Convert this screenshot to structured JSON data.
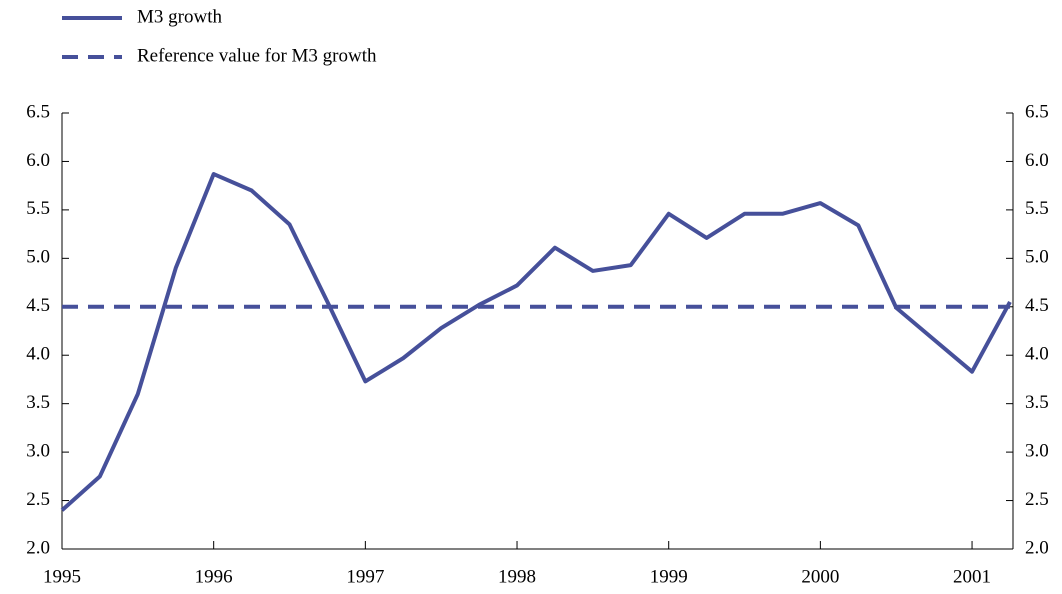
{
  "chart_data": {
    "type": "line",
    "x": [
      1995,
      1995.25,
      1995.5,
      1995.75,
      1996,
      1996.25,
      1996.5,
      1996.75,
      1997,
      1997.25,
      1997.5,
      1997.75,
      1998,
      1998.25,
      1998.5,
      1998.75,
      1999,
      1999.25,
      1999.5,
      1999.75,
      2000,
      2000.25,
      2000.5,
      2000.75,
      2001,
      2001.25
    ],
    "series": [
      {
        "name": "M3 growth",
        "color": "#46509a",
        "dash": false,
        "values": [
          2.4,
          2.75,
          3.6,
          4.9,
          5.87,
          5.7,
          5.35,
          4.55,
          3.73,
          3.97,
          4.28,
          4.52,
          4.72,
          5.11,
          4.87,
          4.93,
          5.46,
          5.21,
          5.46,
          5.46,
          5.57,
          5.34,
          4.49,
          4.16,
          3.83,
          4.55
        ]
      },
      {
        "name": "Reference value for M3 growth",
        "color": "#46509a",
        "dash": true,
        "values": [
          4.5,
          4.5,
          4.5,
          4.5,
          4.5,
          4.5,
          4.5,
          4.5,
          4.5,
          4.5,
          4.5,
          4.5,
          4.5,
          4.5,
          4.5,
          4.5,
          4.5,
          4.5,
          4.5,
          4.5,
          4.5,
          4.5,
          4.5,
          4.5,
          4.5,
          4.5
        ]
      }
    ],
    "xlim": [
      1995,
      2001.27
    ],
    "xticks": [
      1995,
      1996,
      1997,
      1998,
      1999,
      2000,
      2001
    ],
    "ylim": [
      2,
      6.5
    ],
    "yticks": [
      {
        "value": 2,
        "label": "2.0"
      },
      {
        "value": 2.5,
        "label": "2.5"
      },
      {
        "value": 3,
        "label": "3.0"
      },
      {
        "value": 3.5,
        "label": "3.5"
      },
      {
        "value": 4,
        "label": "4.0"
      },
      {
        "value": 4.5,
        "label": "4.5"
      },
      {
        "value": 5,
        "label": "5.0"
      },
      {
        "value": 5.5,
        "label": "5.5"
      },
      {
        "value": 6,
        "label": "6.0"
      },
      {
        "value": 6.5,
        "label": "6.5"
      }
    ],
    "grid": false
  }
}
